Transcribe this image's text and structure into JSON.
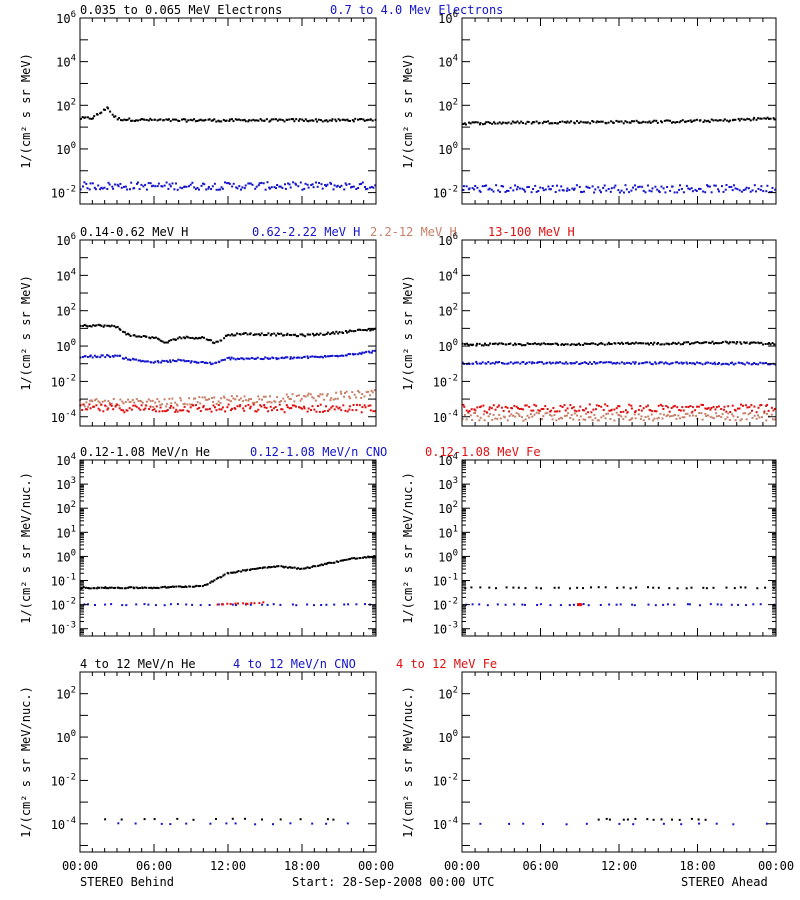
{
  "footer": {
    "left": "STEREO Behind",
    "center": "Start: 28-Sep-2008 00:00 UTC",
    "right": "STEREO Ahead"
  },
  "colors": {
    "black": "#000000",
    "blue": "#1414cc",
    "tan": "#c88068",
    "red": "#e01010"
  },
  "chart_data": [
    {
      "type": "scatter",
      "row": 0,
      "ylabel": "1/(cm² s sr MeV)",
      "yscale": "log",
      "ylim": [
        0.003,
        1000000
      ],
      "yticks": [
        {
          "v": 0.01,
          "exp": "-2"
        },
        {
          "v": 1,
          "exp": "0"
        },
        {
          "v": 100,
          "exp": "2"
        },
        {
          "v": 10000,
          "exp": "4"
        },
        {
          "v": 1000000,
          "exp": "6"
        }
      ],
      "legend": [
        {
          "text": "0.035 to 0.065 MeV Electrons",
          "color": "#000000"
        },
        {
          "text": "0.7 to 4.0 Mev Electrons",
          "color": "#1414cc"
        }
      ],
      "panels": [
        {
          "name": "STEREO Behind",
          "series": [
            {
              "color": "#000000",
              "points": [
                [
                  0,
                  25
                ],
                [
                  1,
                  26
                ],
                [
                  1.5,
                  40
                ],
                [
                  2,
                  60
                ],
                [
                  2.2,
                  90
                ],
                [
                  2.5,
                  45
                ],
                [
                  3,
                  24
                ],
                [
                  4,
                  22
                ],
                [
                  6,
                  21
                ],
                [
                  8,
                  20
                ],
                [
                  10,
                  21
                ],
                [
                  12,
                  20
                ],
                [
                  14,
                  21
                ],
                [
                  16,
                  20
                ],
                [
                  18,
                  21
                ],
                [
                  20,
                  20
                ],
                [
                  22,
                  21
                ],
                [
                  24,
                  22
                ]
              ]
            },
            {
              "color": "#1414cc",
              "points": [
                [
                  0,
                  0.02
                ],
                [
                  24,
                  0.02
                ]
              ]
            }
          ]
        },
        {
          "name": "STEREO Ahead",
          "series": [
            {
              "color": "#000000",
              "points": [
                [
                  0,
                  15
                ],
                [
                  4,
                  16
                ],
                [
                  8,
                  17
                ],
                [
                  12,
                  17
                ],
                [
                  16,
                  18
                ],
                [
                  20,
                  20
                ],
                [
                  24,
                  26
                ]
              ]
            },
            {
              "color": "#1414cc",
              "points": [
                [
                  0,
                  0.015
                ],
                [
                  24,
                  0.015
                ]
              ]
            }
          ]
        }
      ]
    },
    {
      "type": "scatter",
      "row": 1,
      "ylabel": "1/(cm² s sr MeV)",
      "yscale": "log",
      "ylim": [
        3e-05,
        1000000
      ],
      "yticks": [
        {
          "v": 0.0001,
          "exp": "-4"
        },
        {
          "v": 0.01,
          "exp": "-2"
        },
        {
          "v": 1,
          "exp": "0"
        },
        {
          "v": 100,
          "exp": "2"
        },
        {
          "v": 10000,
          "exp": "4"
        },
        {
          "v": 1000000,
          "exp": "6"
        }
      ],
      "legend": [
        {
          "text": "0.14-0.62 MeV H",
          "color": "#000000"
        },
        {
          "text": "0.62-2.22 MeV H",
          "color": "#1414cc"
        },
        {
          "text": "2.2-12 MeV H",
          "color": "#c88068"
        },
        {
          "text": "13-100 MeV H",
          "color": "#e01010"
        }
      ],
      "panels": [
        {
          "name": "STEREO Behind",
          "series": [
            {
              "color": "#000000",
              "points": [
                [
                  0,
                  15
                ],
                [
                  2,
                  14
                ],
                [
                  3,
                  12
                ],
                [
                  4,
                  4
                ],
                [
                  6,
                  3
                ],
                [
                  7,
                  1.5
                ],
                [
                  8,
                  3
                ],
                [
                  10,
                  3
                ],
                [
                  11,
                  1.5
                ],
                [
                  12,
                  4
                ],
                [
                  13,
                  5
                ],
                [
                  16,
                  4.5
                ],
                [
                  18,
                  4
                ],
                [
                  20,
                  5
                ],
                [
                  22,
                  7
                ],
                [
                  24,
                  9
                ]
              ]
            },
            {
              "color": "#1414cc",
              "points": [
                [
                  0,
                  0.25
                ],
                [
                  3,
                  0.28
                ],
                [
                  4,
                  0.18
                ],
                [
                  6,
                  0.12
                ],
                [
                  8,
                  0.15
                ],
                [
                  11,
                  0.1
                ],
                [
                  12,
                  0.2
                ],
                [
                  16,
                  0.2
                ],
                [
                  20,
                  0.25
                ],
                [
                  24,
                  0.5
                ]
              ]
            },
            {
              "color": "#c88068",
              "points": [
                [
                  0,
                  0.0006
                ],
                [
                  6,
                  0.0006
                ],
                [
                  12,
                  0.0009
                ],
                [
                  18,
                  0.0012
                ],
                [
                  24,
                  0.002
                ]
              ]
            },
            {
              "color": "#e01010",
              "points": [
                [
                  0,
                  0.0003
                ],
                [
                  24,
                  0.0003
                ]
              ]
            }
          ]
        },
        {
          "name": "STEREO Ahead",
          "series": [
            {
              "color": "#000000",
              "points": [
                [
                  0,
                  1.2
                ],
                [
                  8,
                  1.3
                ],
                [
                  16,
                  1.4
                ],
                [
                  20,
                  1.6
                ],
                [
                  24,
                  1.3
                ]
              ]
            },
            {
              "color": "#1414cc",
              "points": [
                [
                  0,
                  0.11
                ],
                [
                  12,
                  0.11
                ],
                [
                  24,
                  0.1
                ]
              ]
            },
            {
              "color": "#c88068",
              "points": [
                [
                  0,
                  0.0001
                ],
                [
                  24,
                  0.0001
                ]
              ]
            },
            {
              "color": "#e01010",
              "points": [
                [
                  0,
                  0.0003
                ],
                [
                  24,
                  0.0003
                ]
              ]
            }
          ]
        }
      ]
    },
    {
      "type": "scatter",
      "row": 2,
      "ylabel": "1/(cm² s sr MeV/nuc.)",
      "yscale": "log",
      "ylim": [
        0.0005,
        10000
      ],
      "yticks": [
        {
          "v": 0.001,
          "exp": "-3"
        },
        {
          "v": 0.01,
          "exp": "-2"
        },
        {
          "v": 0.1,
          "exp": "-1"
        },
        {
          "v": 1,
          "exp": "0"
        },
        {
          "v": 10,
          "exp": "1"
        },
        {
          "v": 100,
          "exp": "2"
        },
        {
          "v": 1000,
          "exp": "3"
        },
        {
          "v": 10000,
          "exp": "4"
        }
      ],
      "legend": [
        {
          "text": "0.12-1.08 MeV/n He",
          "color": "#000000"
        },
        {
          "text": "0.12-1.08 MeV/n CNO",
          "color": "#1414cc"
        },
        {
          "text": "0.12-1.08 MeV Fe",
          "color": "#e01010"
        }
      ],
      "panels": [
        {
          "name": "STEREO Behind",
          "series": [
            {
              "color": "#000000",
              "points": [
                [
                  0,
                  0.05
                ],
                [
                  6,
                  0.05
                ],
                [
                  10,
                  0.06
                ],
                [
                  12,
                  0.2
                ],
                [
                  14,
                  0.3
                ],
                [
                  16,
                  0.4
                ],
                [
                  18,
                  0.3
                ],
                [
                  20,
                  0.5
                ],
                [
                  22,
                  0.8
                ],
                [
                  24,
                  1.0
                ]
              ]
            },
            {
              "color": "#1414cc",
              "points": [
                [
                  0,
                  0.01
                ],
                [
                  24,
                  0.01
                ]
              ]
            },
            {
              "color": "#e01010",
              "points": [
                [
                  11,
                  0.01
                ],
                [
                  15,
                  0.012
                ]
              ]
            }
          ]
        },
        {
          "name": "STEREO Ahead",
          "series": [
            {
              "color": "#000000",
              "points": [
                [
                  0,
                  0.05
                ],
                [
                  24,
                  0.05
                ]
              ]
            },
            {
              "color": "#1414cc",
              "points": [
                [
                  0,
                  0.01
                ],
                [
                  24,
                  0.01
                ]
              ]
            },
            {
              "color": "#e01010",
              "points": [
                [
                  9,
                  0.01
                ]
              ]
            }
          ]
        }
      ]
    },
    {
      "type": "scatter",
      "row": 3,
      "ylabel": "1/(cm² s sr MeV/nuc.)",
      "yscale": "log",
      "ylim": [
        5e-06,
        1000
      ],
      "yticks": [
        {
          "v": 0.0001,
          "exp": "-4"
        },
        {
          "v": 0.01,
          "exp": "-2"
        },
        {
          "v": 1,
          "exp": "0"
        },
        {
          "v": 100,
          "exp": "2"
        }
      ],
      "legend": [
        {
          "text": "4 to 12 MeV/n He",
          "color": "#000000"
        },
        {
          "text": "4 to 12 MeV/n CNO",
          "color": "#1414cc"
        },
        {
          "text": "4 to 12 MeV Fe",
          "color": "#e01010"
        }
      ],
      "panels": [
        {
          "name": "STEREO Behind",
          "series": [
            {
              "color": "#000000",
              "points": [
                [
                  1.5,
                  0.00016
                ],
                [
                  16,
                  0.00016
                ],
                [
                  22,
                  0.00016
                ]
              ]
            },
            {
              "color": "#1414cc",
              "points": [
                [
                  3,
                  0.0001
                ],
                [
                  12,
                  0.0001
                ],
                [
                  22,
                  0.0001
                ]
              ]
            }
          ]
        },
        {
          "name": "STEREO Ahead",
          "series": [
            {
              "color": "#000000",
              "points": [
                [
                  10,
                  0.00016
                ],
                [
                  19,
                  0.00016
                ]
              ]
            },
            {
              "color": "#1414cc",
              "points": [
                [
                  1,
                  0.0001
                ],
                [
                  12,
                  0.0001
                ],
                [
                  24,
                  0.0001
                ]
              ]
            }
          ]
        }
      ]
    }
  ],
  "xaxis": {
    "range": [
      0,
      24
    ],
    "ticks": [
      {
        "v": 0,
        "label": "00:00"
      },
      {
        "v": 6,
        "label": "06:00"
      },
      {
        "v": 12,
        "label": "12:00"
      },
      {
        "v": 18,
        "label": "18:00"
      },
      {
        "v": 24,
        "label": "00:00"
      }
    ]
  }
}
